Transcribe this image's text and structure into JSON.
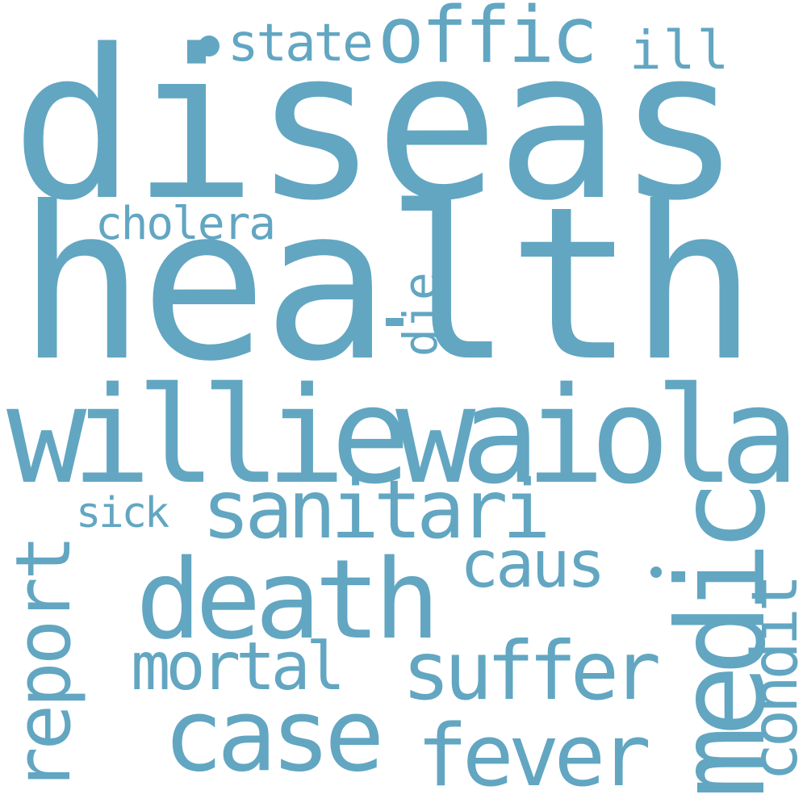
{
  "wordcloud": {
    "color": "#62a6c2",
    "words": {
      "diseas": "diseas",
      "health": "health",
      "williewaiola": "williewaiola",
      "sanitari": "sanitari",
      "death": "death",
      "medic": "medic",
      "case": "case",
      "report": "report",
      "suffer": "suffer",
      "fever": "fever",
      "condit": "condit",
      "mortal": "mortal",
      "caus": "caus",
      "offic": "offic",
      "state": "state",
      "ill": "ill",
      "cholera": "cholera",
      "die": "die",
      "sick": "sick"
    }
  }
}
